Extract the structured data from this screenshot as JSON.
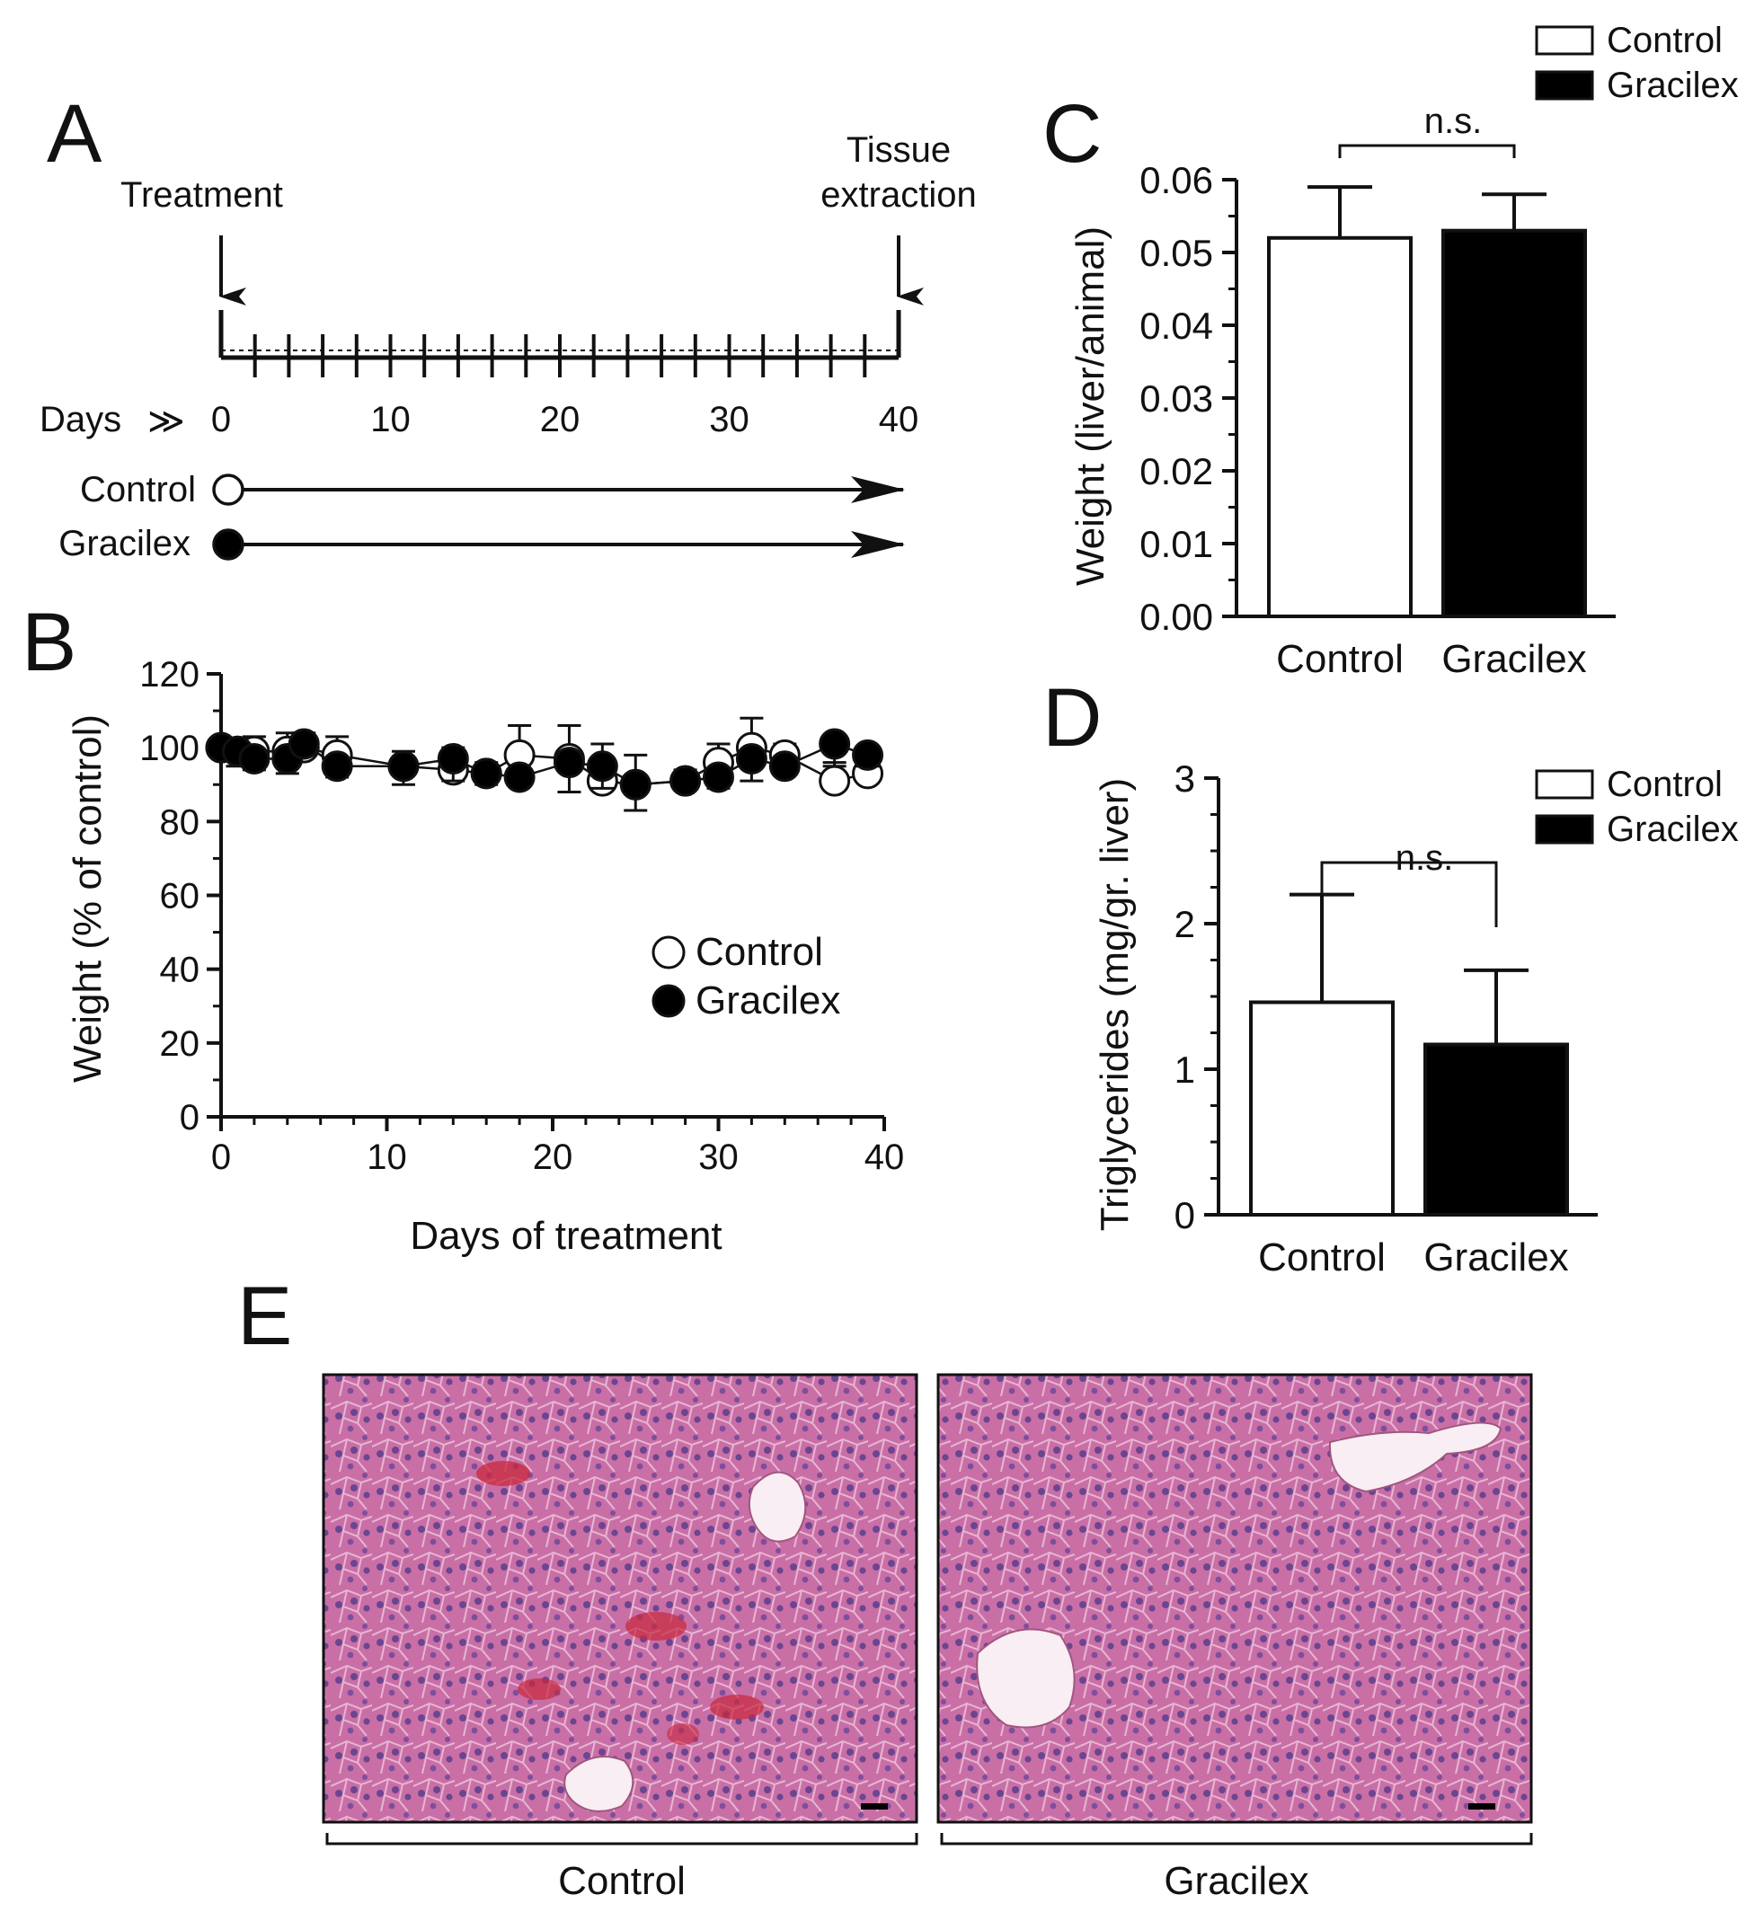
{
  "colors": {
    "control_fill": "#ffffff",
    "gracilex_fill": "#000000",
    "ink": "#111111",
    "tissue_pink": "#c96fa6",
    "tissue_purple": "#7d4e9c"
  },
  "panels": {
    "A": {
      "letter": "A",
      "treatment_label": "Treatment",
      "tissue_label_line1": "Tissue",
      "tissue_label_line2": "extraction",
      "days_label": "Days",
      "days_marker": "≫",
      "tick_labels": [
        "0",
        "10",
        "20",
        "30",
        "40"
      ],
      "groups": [
        "Control",
        "Gracilex"
      ]
    },
    "C": {
      "letter": "C",
      "legend": [
        "Control",
        "Gracilex"
      ],
      "significance": "n.s."
    },
    "D": {
      "letter": "D",
      "legend": [
        "Control",
        "Gracilex"
      ],
      "significance": "n.s."
    },
    "E": {
      "letter": "E",
      "labels": [
        "Control",
        "Gracilex"
      ]
    }
  },
  "chart_data": [
    {
      "id": "B",
      "panel_letter": "B",
      "type": "scatter",
      "xlabel": "Days of treatment",
      "ylabel": "Weight (% of control)",
      "xlim": [
        0,
        40
      ],
      "ylim": [
        0,
        120
      ],
      "xticks": [
        0,
        10,
        20,
        30,
        40
      ],
      "yticks": [
        0,
        20,
        40,
        60,
        80,
        100,
        120
      ],
      "legend_position": "right-middle",
      "series": [
        {
          "name": "Control",
          "marker": "open-circle",
          "x": [
            0,
            1,
            2,
            4,
            5,
            7,
            11,
            14,
            16,
            18,
            21,
            23,
            25,
            28,
            30,
            32,
            34,
            37,
            39
          ],
          "y": [
            100,
            99,
            99,
            99,
            100,
            98,
            95,
            94,
            93,
            98,
            97,
            91,
            90,
            91,
            96,
            100,
            98,
            91,
            93
          ],
          "err": [
            2,
            3,
            4,
            5,
            4,
            5,
            4,
            6,
            3,
            8,
            9,
            10,
            8,
            3,
            5,
            8,
            3,
            5,
            5
          ]
        },
        {
          "name": "Gracilex",
          "marker": "filled-circle",
          "x": [
            0,
            1,
            2,
            4,
            5,
            7,
            11,
            14,
            16,
            18,
            21,
            23,
            25,
            28,
            30,
            32,
            34,
            37,
            39
          ],
          "y": [
            100,
            99,
            97,
            97,
            101,
            95,
            95,
            97,
            93,
            92,
            96,
            95,
            90,
            91,
            92,
            97,
            95,
            101,
            98
          ],
          "err": [
            2,
            4,
            3,
            4,
            3,
            3,
            5,
            6,
            3,
            2,
            8,
            6,
            7,
            2,
            3,
            6,
            2,
            6,
            3
          ]
        }
      ]
    },
    {
      "id": "C",
      "type": "bar",
      "ylabel": "Weight (liver/animal)",
      "categories": [
        "Control",
        "Gracilex"
      ],
      "values": [
        0.052,
        0.053
      ],
      "errors": [
        0.007,
        0.005
      ],
      "ylim": [
        0,
        0.06
      ],
      "yticks": [
        "0.00",
        "0.01",
        "0.02",
        "0.03",
        "0.04",
        "0.05",
        "0.06"
      ],
      "legend_position": "top-right"
    },
    {
      "id": "D",
      "type": "bar",
      "ylabel": "Triglycerides (mg/gr. liver)",
      "categories": [
        "Control",
        "Gracilex"
      ],
      "values": [
        1.46,
        1.17
      ],
      "errors": [
        0.74,
        0.51
      ],
      "ylim": [
        0,
        3
      ],
      "yticks": [
        "0",
        "1",
        "2",
        "3"
      ],
      "legend_position": "top-right"
    }
  ]
}
